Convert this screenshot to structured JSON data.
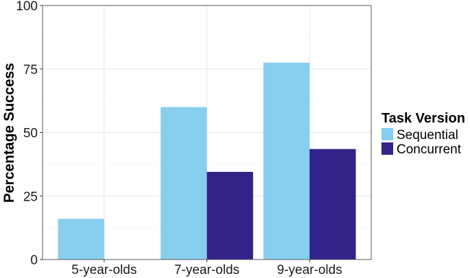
{
  "chart_data": {
    "type": "bar",
    "title": "",
    "xlabel": "",
    "ylabel": "Percentage Success",
    "ylim": [
      0,
      100
    ],
    "yticks": [
      0,
      25,
      50,
      75,
      100
    ],
    "categories": [
      "5-year-olds",
      "7-year-olds",
      "9-year-olds"
    ],
    "series": [
      {
        "name": "Sequential",
        "color": "#88CEEE",
        "values": [
          16,
          60,
          77.5
        ]
      },
      {
        "name": "Concurrent",
        "color": "#332288",
        "values": [
          0,
          34.5,
          43.5
        ]
      }
    ],
    "legend": {
      "title": "Task Version",
      "placement": "right"
    },
    "grid": true
  }
}
